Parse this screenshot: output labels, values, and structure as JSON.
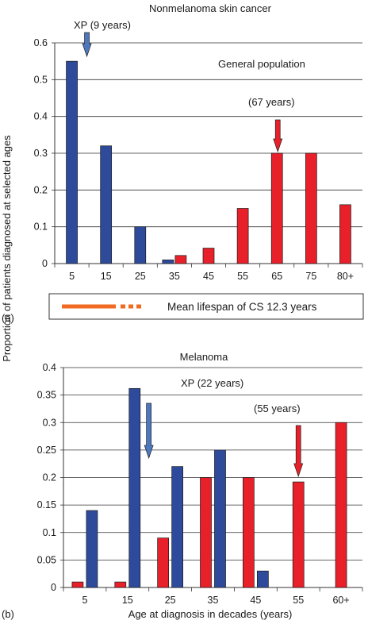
{
  "shared": {
    "ylabel": "Proportion of patients diagnosed at selected ages",
    "xlabel": "Age at diagnosis in decades (years)"
  },
  "colors": {
    "xp": "#2e4b9b",
    "general": "#e8202a",
    "arrow_xp": "#4d78c0",
    "arrow_general": "#e8202a",
    "legend_line": "#f06a22"
  },
  "legend": {
    "label": "Mean lifespan of CS 12.3 years"
  },
  "chart_data": [
    {
      "type": "bar",
      "panel_label": "(a)",
      "title": "Nonmelanoma skin cancer",
      "categories": [
        "5",
        "15",
        "25",
        "35",
        "45",
        "55",
        "65",
        "75",
        "80+"
      ],
      "ylim": [
        0,
        0.6
      ],
      "yticks": [
        "0",
        "0.1",
        "0.2",
        "0.3",
        "0.4",
        "0.5",
        "0.6"
      ],
      "grid": true,
      "series": [
        {
          "key": "xp",
          "values": [
            0.55,
            0.32,
            0.1,
            0.01,
            null,
            null,
            null,
            null,
            null
          ]
        },
        {
          "key": "general",
          "values": [
            null,
            null,
            null,
            0.022,
            0.042,
            0.15,
            0.3,
            0.3,
            0.16
          ]
        }
      ],
      "annotations": [
        {
          "key": "xp_arrow",
          "text": "XP (9 years)",
          "category": "5"
        },
        {
          "key": "gp_label",
          "text": "General population"
        },
        {
          "key": "gp_arrow",
          "text": "(67 years)",
          "category": "65"
        }
      ]
    },
    {
      "type": "bar",
      "panel_label": "(b)",
      "title": "Melanoma",
      "categories": [
        "5",
        "15",
        "25",
        "35",
        "45",
        "55",
        "60+"
      ],
      "ylim": [
        0,
        0.4
      ],
      "yticks": [
        "0",
        "0.05",
        "0.1",
        "0.15",
        "0.2",
        "0.25",
        "0.3",
        "0.35",
        "0.4"
      ],
      "grid": true,
      "series": [
        {
          "key": "general",
          "values": [
            0.01,
            0.01,
            0.09,
            0.2,
            0.2,
            0.192,
            0.3
          ]
        },
        {
          "key": "xp",
          "values": [
            0.14,
            0.362,
            0.22,
            0.25,
            0.03,
            null,
            null
          ]
        }
      ],
      "annotations": [
        {
          "key": "xp_arrow",
          "text": "XP (22 years)",
          "category": "25"
        },
        {
          "key": "gp_arrow",
          "text": "(55 years)",
          "category": "55"
        }
      ]
    }
  ]
}
